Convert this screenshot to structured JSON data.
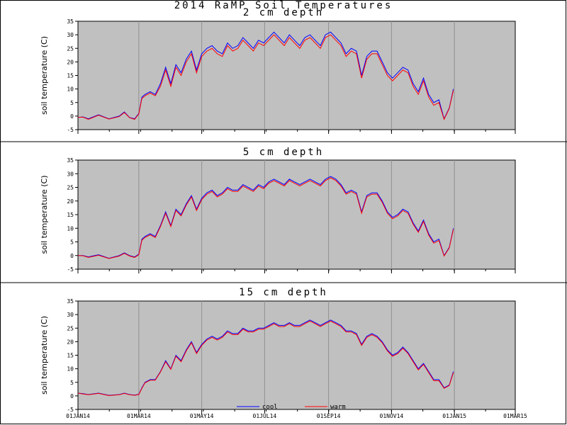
{
  "page_title": "2014 RaMP Soil Temperatures",
  "colors": {
    "cool": "#0000ff",
    "warm": "#ff0000",
    "plot_bg": "#c0c0c0",
    "grid": "#909090"
  },
  "chart_data": [
    {
      "type": "line",
      "title": "2 cm depth",
      "ylabel": "soil temperature (C)",
      "ylim": [
        -5,
        35
      ],
      "yticks": [
        "-5",
        "0",
        "5",
        "10",
        "15",
        "20",
        "25",
        "30",
        "35"
      ],
      "xticks": [
        "01JAN14",
        "01MAR14",
        "01MAY14",
        "01JUL14",
        "01SEP14",
        "01NOV14",
        "01JAN15",
        "01MAR15"
      ],
      "xlim_days": [
        0,
        424
      ],
      "x_days": [
        0,
        5,
        10,
        20,
        30,
        40,
        45,
        50,
        55,
        59,
        62,
        65,
        70,
        75,
        80,
        85,
        90,
        95,
        100,
        105,
        110,
        115,
        120,
        125,
        130,
        135,
        140,
        145,
        150,
        155,
        160,
        165,
        170,
        175,
        180,
        185,
        190,
        195,
        200,
        205,
        210,
        215,
        220,
        225,
        230,
        235,
        240,
        245,
        250,
        255,
        260,
        265,
        270,
        275,
        280,
        285,
        290,
        295,
        300,
        305,
        310,
        315,
        320,
        325,
        330,
        335,
        340,
        345,
        350,
        355,
        360,
        364
      ],
      "series": [
        {
          "name": "cool",
          "values": [
            -0.5,
            -0.3,
            -1,
            0.5,
            -1,
            0,
            1.5,
            -0.5,
            -1,
            1,
            7,
            8,
            9,
            8,
            12,
            18,
            12,
            19,
            16,
            21,
            24,
            17,
            23,
            25,
            26,
            24,
            23,
            27,
            25,
            26,
            29,
            27,
            25,
            28,
            27,
            29,
            31,
            29,
            27,
            30,
            28,
            26,
            29,
            30,
            28,
            26,
            30,
            31,
            29,
            27,
            23,
            25,
            24,
            15,
            22,
            24,
            24,
            20,
            16,
            14,
            16,
            18,
            17,
            12,
            9,
            14,
            8,
            5,
            6,
            -1,
            3,
            10
          ]
        },
        {
          "name": "warm",
          "values": [
            -0.5,
            -0.4,
            -1.2,
            0.3,
            -1.1,
            -0.2,
            1.3,
            -0.6,
            -1.2,
            0.8,
            6.5,
            7.5,
            8.5,
            7.5,
            11,
            17,
            11,
            18,
            15,
            20,
            23,
            16,
            22,
            24,
            25,
            23,
            22,
            26,
            24,
            25,
            28,
            26,
            24,
            27,
            26,
            28,
            30,
            28,
            26,
            29,
            27,
            25,
            28,
            29,
            27,
            25,
            29,
            30,
            28,
            26,
            22,
            24,
            23,
            14,
            21,
            23,
            23,
            19,
            15,
            13,
            15,
            17,
            16,
            11,
            8,
            13,
            7,
            4,
            5,
            -1.2,
            2.8,
            9.5
          ]
        }
      ]
    },
    {
      "type": "line",
      "title": "5 cm depth",
      "ylabel": "soil temperature (C)",
      "ylim": [
        -5,
        35
      ],
      "yticks": [
        "-5",
        "0",
        "5",
        "10",
        "15",
        "20",
        "25",
        "30",
        "35"
      ],
      "xticks": [
        "01JAN14",
        "01MAR14",
        "01MAY14",
        "01JUL14",
        "01SEP14",
        "01NOV14",
        "01JAN15",
        "01MAR15"
      ],
      "xlim_days": [
        0,
        424
      ],
      "x_days": [
        0,
        5,
        10,
        20,
        30,
        40,
        45,
        50,
        55,
        59,
        62,
        65,
        70,
        75,
        80,
        85,
        90,
        95,
        100,
        105,
        110,
        115,
        120,
        125,
        130,
        135,
        140,
        145,
        150,
        155,
        160,
        165,
        170,
        175,
        180,
        185,
        190,
        195,
        200,
        205,
        210,
        215,
        220,
        225,
        230,
        235,
        240,
        245,
        250,
        255,
        260,
        265,
        270,
        275,
        280,
        285,
        290,
        295,
        300,
        305,
        310,
        315,
        320,
        325,
        330,
        335,
        340,
        345,
        350,
        355,
        360,
        364
      ],
      "series": [
        {
          "name": "cool",
          "values": [
            0,
            0,
            -0.5,
            0.3,
            -1,
            0,
            1,
            0,
            -0.5,
            0.5,
            6,
            7,
            8,
            7,
            11,
            16,
            11,
            17,
            15,
            19,
            22,
            17,
            21,
            23,
            24,
            22,
            23,
            25,
            24,
            24,
            26,
            25,
            24,
            26,
            25,
            27,
            28,
            27,
            26,
            28,
            27,
            26,
            27,
            28,
            27,
            26,
            28,
            29,
            28,
            26,
            23,
            24,
            23,
            16,
            22,
            23,
            23,
            20,
            16,
            14,
            15,
            17,
            16,
            12,
            9,
            13,
            8,
            5,
            6,
            0,
            3,
            10
          ]
        },
        {
          "name": "warm",
          "values": [
            0,
            -0.1,
            -0.7,
            0.1,
            -1.1,
            -0.2,
            0.8,
            -0.2,
            -0.7,
            0.3,
            5.6,
            6.6,
            7.6,
            6.6,
            10.6,
            15.5,
            10.6,
            16.5,
            14.5,
            18.5,
            21.5,
            16.5,
            20.5,
            22.5,
            23.5,
            21.5,
            22.5,
            24.5,
            23.5,
            23.5,
            25.5,
            24.5,
            23.5,
            25.5,
            24.5,
            26.5,
            27.5,
            26.5,
            25.5,
            27.5,
            26.5,
            25.5,
            26.5,
            27.5,
            26.5,
            25.5,
            27.5,
            28.5,
            27.5,
            25.5,
            22.5,
            23.5,
            22.5,
            15.5,
            21.5,
            22.5,
            22.5,
            19.5,
            15.5,
            13.5,
            14.5,
            16.5,
            15.5,
            11.5,
            8.5,
            12.5,
            7.5,
            4.5,
            5.5,
            -0.2,
            2.8,
            9.6
          ]
        }
      ]
    },
    {
      "type": "line",
      "title": "15 cm depth",
      "ylabel": "soil temperature (C)",
      "ylim": [
        -5,
        35
      ],
      "yticks": [
        "-5",
        "0",
        "5",
        "10",
        "15",
        "20",
        "25",
        "30",
        "35"
      ],
      "xticks": [
        "01JAN14",
        "01MAR14",
        "01MAY14",
        "01JUL14",
        "01SEP14",
        "01NOV14",
        "01JAN15",
        "01MAR15"
      ],
      "xlim_days": [
        0,
        424
      ],
      "x_days": [
        0,
        5,
        10,
        20,
        30,
        40,
        45,
        50,
        55,
        59,
        62,
        65,
        70,
        75,
        80,
        85,
        90,
        95,
        100,
        105,
        110,
        115,
        120,
        125,
        130,
        135,
        140,
        145,
        150,
        155,
        160,
        165,
        170,
        175,
        180,
        185,
        190,
        195,
        200,
        205,
        210,
        215,
        220,
        225,
        230,
        235,
        240,
        245,
        250,
        255,
        260,
        265,
        270,
        275,
        280,
        285,
        290,
        295,
        300,
        305,
        310,
        315,
        320,
        325,
        330,
        335,
        340,
        345,
        350,
        355,
        360,
        364
      ],
      "series": [
        {
          "name": "cool",
          "values": [
            1,
            0.8,
            0.5,
            1,
            0.2,
            0.5,
            1,
            0.5,
            0.3,
            0.6,
            3,
            5,
            6,
            6,
            9,
            13,
            10,
            15,
            13,
            17,
            20,
            16,
            19,
            21,
            22,
            21,
            22,
            24,
            23,
            23,
            25,
            24,
            24,
            25,
            25,
            26,
            27,
            26,
            26,
            27,
            26,
            26,
            27,
            28,
            27,
            26,
            27,
            28,
            27,
            26,
            24,
            24,
            23,
            19,
            22,
            23,
            22,
            20,
            17,
            15,
            16,
            18,
            16,
            13,
            10,
            12,
            9,
            6,
            6,
            3,
            4,
            9
          ]
        },
        {
          "name": "warm",
          "values": [
            1,
            0.7,
            0.4,
            0.9,
            0.1,
            0.4,
            0.9,
            0.4,
            0.2,
            0.5,
            2.8,
            4.8,
            5.8,
            5.8,
            8.8,
            12.6,
            9.8,
            14.6,
            12.6,
            16.6,
            19.6,
            15.6,
            18.6,
            20.6,
            21.6,
            20.6,
            21.6,
            23.6,
            22.6,
            22.6,
            24.6,
            23.6,
            23.6,
            24.6,
            24.6,
            25.6,
            26.6,
            25.6,
            25.6,
            26.6,
            25.6,
            25.6,
            26.6,
            27.6,
            26.6,
            25.6,
            26.6,
            27.6,
            26.6,
            25.6,
            23.6,
            23.6,
            22.6,
            18.6,
            21.6,
            22.6,
            21.6,
            19.6,
            16.6,
            14.6,
            15.6,
            17.6,
            15.6,
            12.6,
            9.6,
            11.6,
            8.6,
            5.6,
            5.6,
            2.8,
            3.8,
            8.6
          ]
        }
      ]
    }
  ]
}
